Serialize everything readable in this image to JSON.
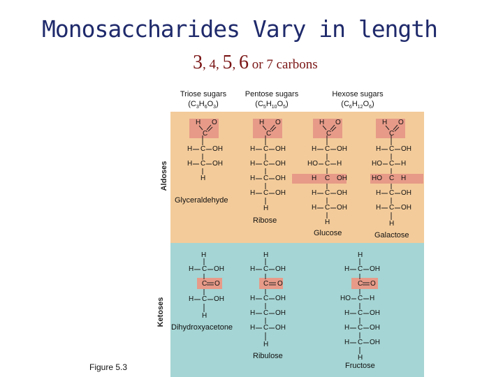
{
  "slide": {
    "title": "Monosaccharides Vary in length",
    "subtitle": {
      "n3": "3",
      "sep1": ", ",
      "n4": "4",
      "sep2": ", ",
      "n5": "5",
      "sep3": ", ",
      "n6": "6",
      "tail": " or 7 carbons"
    },
    "figure_label": "Figure 5.3"
  },
  "headers": {
    "triose": {
      "label": "Triose sugars",
      "formula": "(C3H6O3)"
    },
    "pentose": {
      "label": "Pentose sugars",
      "formula": "(C5H10O5)"
    },
    "hexose": {
      "label": "Hexose sugars",
      "formula": "(C6H12O6)"
    }
  },
  "rows": {
    "aldoses": "Aldoses",
    "ketoses": "Ketoses"
  },
  "molecules": {
    "glyceraldehyde": "Glyceraldehyde",
    "ribose": "Ribose",
    "glucose": "Glucose",
    "galactose": "Galactose",
    "dihydroxyacetone": "Dihydroxyacetone",
    "ribulose": "Ribulose",
    "fructose": "Fructose"
  },
  "atoms": {
    "H": "H",
    "C": "C",
    "O": "O",
    "OH": "OH",
    "HO": "HO"
  },
  "colors": {
    "aldose_band": "#f3cb9a",
    "ketose_band": "#a5d5d4",
    "highlight": "#e79a88",
    "title": "#1f2a6b",
    "subtitle": "#7a1414"
  }
}
